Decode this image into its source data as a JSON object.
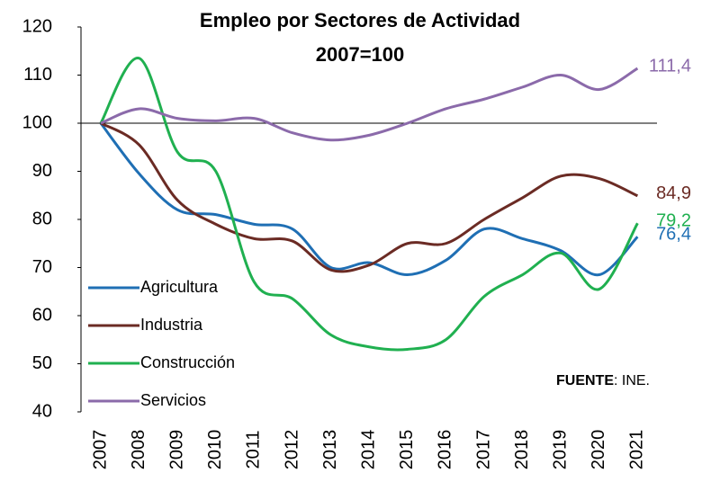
{
  "chart_data": {
    "type": "line",
    "title": "Empleo por Sectores de Actividad",
    "subtitle": "2007=100",
    "categories": [
      "2007",
      "2008",
      "2009",
      "2010",
      "2011",
      "2012",
      "2013",
      "2014",
      "2015",
      "2016",
      "2017",
      "2018",
      "2019",
      "2020",
      "2021"
    ],
    "series": [
      {
        "name": "Agricultura",
        "color": "#1f6fb4",
        "values": [
          100,
          89.5,
          82,
          81,
          79,
          78,
          70,
          71,
          68.5,
          71.5,
          78,
          76,
          73.5,
          68.5,
          76.4
        ],
        "value_labels": [
          null,
          null,
          null,
          null,
          null,
          null,
          null,
          null,
          null,
          null,
          null,
          null,
          null,
          null,
          "76,4"
        ]
      },
      {
        "name": "Industria",
        "color": "#6b2b24",
        "values": [
          100,
          95.5,
          84,
          79,
          76,
          75.5,
          69.5,
          70.5,
          75,
          75,
          80,
          84.5,
          89,
          88.5,
          84.9
        ],
        "value_labels": [
          null,
          null,
          null,
          null,
          null,
          null,
          null,
          null,
          null,
          null,
          null,
          null,
          null,
          null,
          "84,9"
        ]
      },
      {
        "name": "Construcción",
        "color": "#20b050",
        "values": [
          100,
          113.5,
          94,
          90,
          67,
          63.5,
          56,
          53.5,
          53,
          55,
          64,
          68.5,
          73,
          65.5,
          79.2
        ],
        "value_labels": [
          null,
          null,
          null,
          null,
          null,
          null,
          null,
          null,
          null,
          null,
          null,
          null,
          null,
          null,
          "79,2"
        ]
      },
      {
        "name": "Servicios",
        "color": "#8b6aaa",
        "values": [
          100,
          103,
          101,
          100.5,
          101,
          98,
          96.5,
          97.5,
          100,
          103,
          105,
          107.5,
          110,
          107,
          111.4
        ],
        "value_labels": [
          null,
          null,
          null,
          null,
          null,
          null,
          null,
          null,
          null,
          null,
          null,
          null,
          null,
          null,
          "111,4"
        ]
      }
    ],
    "ylim": [
      40,
      120
    ],
    "yticks": [
      40,
      50,
      60,
      70,
      80,
      90,
      100,
      110,
      120
    ],
    "reference_line": 100,
    "legend": "left",
    "source_label": "FUENTE",
    "source": ": INE."
  }
}
